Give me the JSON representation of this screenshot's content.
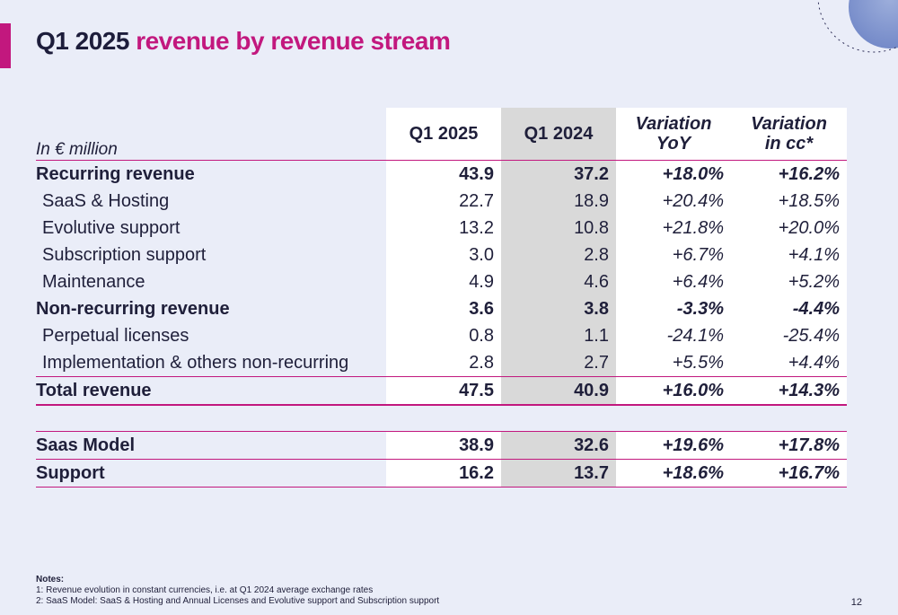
{
  "title": {
    "part1": "Q1 2025",
    "part2": "revenue by revenue stream"
  },
  "colors": {
    "accent": "#c2187e",
    "background": "#eaedf8",
    "shaded_column": "#d9d9d9"
  },
  "table": {
    "unit_label": "In € million",
    "headers": {
      "q1_2025": "Q1 2025",
      "q1_2024": "Q1 2024",
      "variation_yoy_l1": "Variation",
      "variation_yoy_l2": "YoY",
      "variation_cc_l1": "Variation",
      "variation_cc_l2": "in cc*"
    },
    "rows": [
      {
        "label": "Recurring revenue",
        "q1_2025": "43.9",
        "q1_2024": "37.2",
        "yoy": "+18.0%",
        "cc": "+16.2%"
      },
      {
        "label": "SaaS & Hosting",
        "q1_2025": "22.7",
        "q1_2024": "18.9",
        "yoy": "+20.4%",
        "cc": "+18.5%"
      },
      {
        "label": "Evolutive support",
        "q1_2025": "13.2",
        "q1_2024": "10.8",
        "yoy": "+21.8%",
        "cc": "+20.0%"
      },
      {
        "label": "Subscription support",
        "q1_2025": "3.0",
        "q1_2024": "2.8",
        "yoy": "+6.7%",
        "cc": "+4.1%"
      },
      {
        "label": "Maintenance",
        "q1_2025": "4.9",
        "q1_2024": "4.6",
        "yoy": "+6.4%",
        "cc": "+5.2%"
      },
      {
        "label": "Non-recurring revenue",
        "q1_2025": "3.6",
        "q1_2024": "3.8",
        "yoy": "-3.3%",
        "cc": "-4.4%"
      },
      {
        "label": "Perpetual licenses",
        "q1_2025": "0.8",
        "q1_2024": "1.1",
        "yoy": "-24.1%",
        "cc": "-25.4%"
      },
      {
        "label": "Implementation & others non-recurring",
        "q1_2025": "2.8",
        "q1_2024": "2.7",
        "yoy": "+5.5%",
        "cc": "+4.4%"
      },
      {
        "label": "Total revenue",
        "q1_2025": "47.5",
        "q1_2024": "40.9",
        "yoy": "+16.0%",
        "cc": "+14.3%"
      },
      {
        "label": "Saas Model",
        "q1_2025": "38.9",
        "q1_2024": "32.6",
        "yoy": "+19.6%",
        "cc": "+17.8%"
      },
      {
        "label": "Support",
        "q1_2025": "16.2",
        "q1_2024": "13.7",
        "yoy": "+18.6%",
        "cc": "+16.7%"
      }
    ]
  },
  "notes": {
    "title": "Notes:",
    "lines": [
      "1: Revenue evolution in constant currencies, i.e. at Q1 2024 average exchange rates",
      "2: SaaS Model: SaaS & Hosting and Annual Licenses and Evolutive support and Subscription support"
    ]
  },
  "page_number": "12",
  "icons": {
    "decoration": "textured-circle-decoration"
  }
}
